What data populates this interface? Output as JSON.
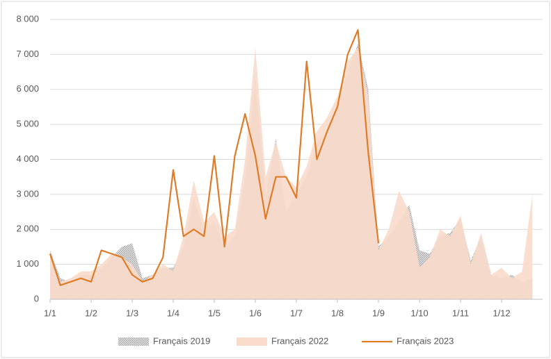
{
  "chart_data": {
    "type": "area-line",
    "categories": [
      "1/1",
      null,
      null,
      null,
      "1/2",
      null,
      null,
      null,
      "1/3",
      null,
      null,
      null,
      "1/4",
      null,
      null,
      null,
      "1/5",
      null,
      null,
      null,
      "1/6",
      null,
      null,
      null,
      "1/7",
      null,
      null,
      null,
      "1/8",
      null,
      null,
      null,
      "1/9",
      null,
      null,
      null,
      "1/10",
      null,
      null,
      null,
      "1/11",
      null,
      null,
      null,
      "1/12",
      null,
      null,
      null
    ],
    "series": [
      {
        "name": "Français 2019",
        "color": "#a6a6a6",
        "style": "hatched-area",
        "values": [
          1400,
          600,
          500,
          700,
          700,
          900,
          1200,
          1500,
          1600,
          600,
          700,
          900,
          900,
          1500,
          2900,
          2000,
          2200,
          1500,
          1800,
          3500,
          6400,
          3000,
          4600,
          2500,
          3000,
          3500,
          4500,
          4800,
          5500,
          6500,
          7300,
          6000,
          1500,
          1800,
          2200,
          2700,
          1400,
          1300,
          1800,
          1900,
          2300,
          1100,
          1800,
          700,
          600,
          700,
          500,
          600
        ]
      },
      {
        "name": "Français 2022",
        "color": "#f9dccb",
        "style": "area",
        "values": [
          1200,
          500,
          600,
          800,
          800,
          1000,
          1300,
          1200,
          1000,
          500,
          700,
          1000,
          800,
          1800,
          3400,
          2200,
          2500,
          1800,
          2000,
          4000,
          7200,
          3500,
          4500,
          3500,
          3200,
          3800,
          4800,
          5200,
          5800,
          6800,
          7200,
          5800,
          1400,
          2000,
          3100,
          2500,
          900,
          1200,
          2000,
          1800,
          2400,
          1000,
          1900,
          700,
          900,
          600,
          800,
          3000
        ]
      },
      {
        "name": "Français 2023",
        "color": "#e07b28",
        "style": "line",
        "values": [
          1300,
          400,
          500,
          600,
          500,
          1400,
          1300,
          1200,
          700,
          500,
          600,
          1200,
          3700,
          1800,
          2000,
          1800,
          4100,
          1500,
          4100,
          5300,
          4100,
          2300,
          3500,
          3500,
          2900,
          6800,
          4000,
          4800,
          5500,
          7000,
          7700,
          4200,
          1600,
          null,
          null,
          null,
          null,
          null,
          null,
          null,
          null,
          null,
          null,
          null,
          null,
          null,
          null,
          null
        ]
      }
    ],
    "ylim": [
      0,
      8000
    ],
    "yticks": [
      0,
      {
        "value": 1000,
        "label": "1 000"
      },
      {
        "value": 2000,
        "label": "2 000"
      },
      {
        "value": 3000,
        "label": "3 000"
      },
      {
        "value": 4000,
        "label": "4 000"
      },
      {
        "value": 5000,
        "label": "5 000"
      },
      {
        "value": 6000,
        "label": "6 000"
      },
      {
        "value": 7000,
        "label": "7 000"
      },
      {
        "value": 8000,
        "label": "8 000"
      }
    ],
    "grid": true,
    "legend": "bottom"
  }
}
